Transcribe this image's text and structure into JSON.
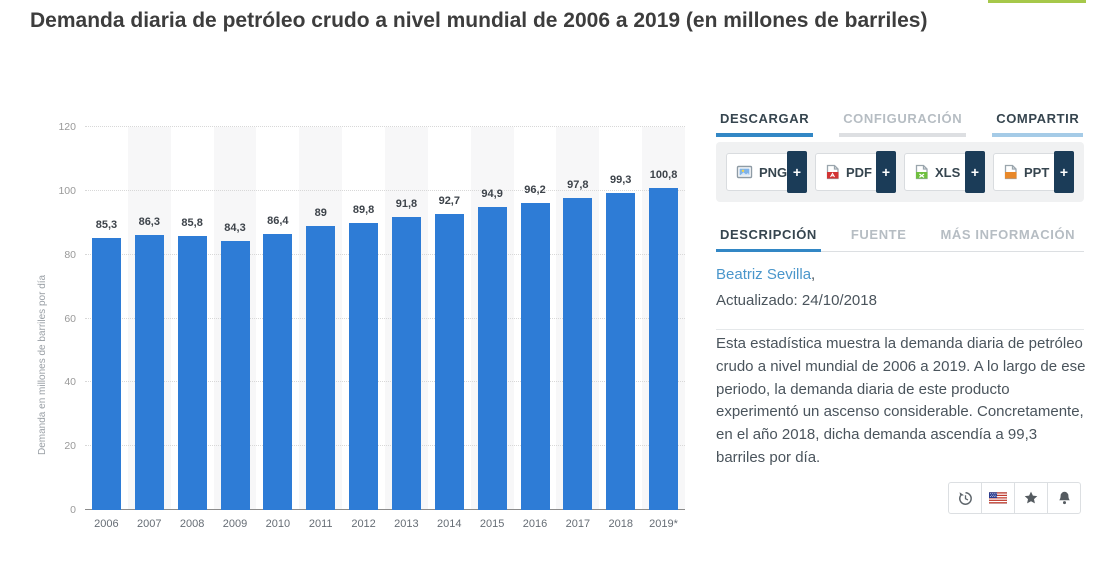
{
  "page": {
    "title": "Demanda diaria de petróleo crudo a nivel mundial de 2006 a 2019 (en millones de barriles)",
    "accent_strip_color": "#a6c84a"
  },
  "chart_data": {
    "type": "bar",
    "categories": [
      "2006",
      "2007",
      "2008",
      "2009",
      "2010",
      "2011",
      "2012",
      "2013",
      "2014",
      "2015",
      "2016",
      "2017",
      "2018",
      "2019*"
    ],
    "values": [
      85.3,
      86.3,
      85.8,
      84.3,
      86.4,
      89,
      89.8,
      91.8,
      92.7,
      94.9,
      96.2,
      97.8,
      99.3,
      100.8
    ],
    "value_labels": [
      "85,3",
      "86,3",
      "85,8",
      "84,3",
      "86,4",
      "89",
      "89,8",
      "91,8",
      "92,7",
      "94,9",
      "96,2",
      "97,8",
      "99,3",
      "100,8"
    ],
    "title": "",
    "xlabel": "",
    "ylabel": "Demanda en millones de barriles por día",
    "ylim": [
      0,
      120
    ],
    "yticks": [
      0,
      20,
      40,
      60,
      80,
      100,
      120
    ],
    "grid": "dotted-horizontal",
    "legend": "none",
    "bar_color": "#2e7cd6",
    "alt_band_color": "#f7f7f8"
  },
  "panel": {
    "tabs_top": [
      {
        "label": "DESCARGAR",
        "state": "active"
      },
      {
        "label": "CONFIGURACIÓN",
        "state": "inactive"
      },
      {
        "label": "COMPARTIR",
        "state": "highlight"
      }
    ],
    "download_buttons": [
      {
        "label": "PNG",
        "icon": "png-file-icon",
        "plus": "+"
      },
      {
        "label": "PDF",
        "icon": "pdf-file-icon",
        "plus": "+"
      },
      {
        "label": "XLS",
        "icon": "xls-file-icon",
        "plus": "+"
      },
      {
        "label": "PPT",
        "icon": "ppt-file-icon",
        "plus": "+"
      }
    ],
    "tabs_info": [
      {
        "label": "DESCRIPCIÓN",
        "state": "active"
      },
      {
        "label": "FUENTE",
        "state": "inactive"
      },
      {
        "label": "MÁS INFORMACIÓN",
        "state": "inactive"
      }
    ],
    "author": "Beatriz Sevilla",
    "author_suffix": ",",
    "updated": "Actualizado: 24/10/2018",
    "description": "Esta estadística muestra la demanda diaria de petróleo crudo a nivel mundial de 2006 a 2019. A lo largo de ese periodo, la demanda diaria de este producto experimentó un ascenso considerable. Concretamente, en el año 2018, dicha demanda ascendía a 99,3 barriles por día.",
    "action_buttons": [
      "history-icon",
      "english-version-flag-icon",
      "favorite-star-icon",
      "notification-bell-icon"
    ]
  }
}
